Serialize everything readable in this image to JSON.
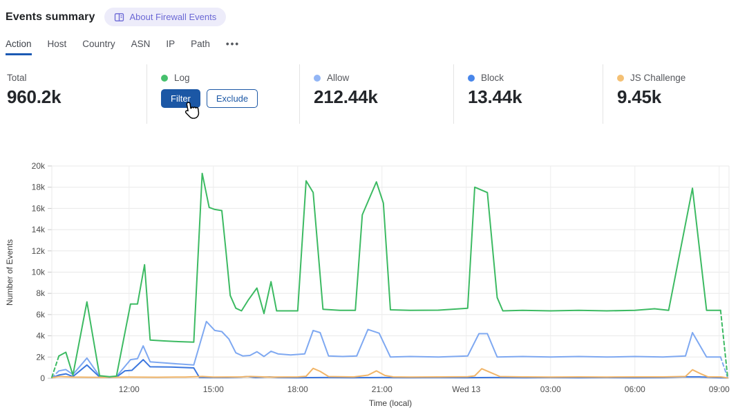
{
  "header": {
    "title": "Events summary",
    "badge": {
      "label": "About Firewall Events"
    }
  },
  "tabs": {
    "items": [
      {
        "label": "Action",
        "active": true
      },
      {
        "label": "Host",
        "active": false
      },
      {
        "label": "Country",
        "active": false
      },
      {
        "label": "ASN",
        "active": false
      },
      {
        "label": "IP",
        "active": false
      },
      {
        "label": "Path",
        "active": false
      },
      {
        "label": "•••",
        "active": false
      }
    ]
  },
  "stats": {
    "cards": [
      {
        "label": "Total",
        "value": "960.2k"
      },
      {
        "label": "Log",
        "dot_color": "#46c06d",
        "filter_label": "Filter",
        "exclude_label": "Exclude"
      },
      {
        "label": "Allow",
        "dot_color": "#92b5f5",
        "value": "212.44k"
      },
      {
        "label": "Block",
        "dot_color": "#4886ea",
        "value": "13.44k"
      },
      {
        "label": "JS Challenge",
        "dot_color": "#f4c074",
        "value": "9.45k"
      }
    ]
  },
  "chart_data": {
    "type": "line",
    "title": "",
    "xlabel": "Time (local)",
    "ylabel": "Number of Events",
    "x_unit": "local time in decimal hours; 24 = midnight Wed 13",
    "xlim": [
      9.25,
      33.35
    ],
    "ylim": [
      0,
      20000
    ],
    "grid": true,
    "legend_position": "stats-row-above",
    "y_ticks": [
      {
        "value": 0,
        "label": "0"
      },
      {
        "value": 2000,
        "label": "2k"
      },
      {
        "value": 4000,
        "label": "4k"
      },
      {
        "value": 6000,
        "label": "6k"
      },
      {
        "value": 8000,
        "label": "8k"
      },
      {
        "value": 10000,
        "label": "10k"
      },
      {
        "value": 12000,
        "label": "12k"
      },
      {
        "value": 14000,
        "label": "14k"
      },
      {
        "value": 16000,
        "label": "16k"
      },
      {
        "value": 18000,
        "label": "18k"
      },
      {
        "value": 20000,
        "label": "20k"
      }
    ],
    "x_ticks": [
      {
        "value": 12,
        "label": "12:00"
      },
      {
        "value": 15,
        "label": "15:00"
      },
      {
        "value": 18,
        "label": "18:00"
      },
      {
        "value": 21,
        "label": "21:00"
      },
      {
        "value": 24,
        "label": "Wed 13"
      },
      {
        "value": 27,
        "label": "03:00"
      },
      {
        "value": 30,
        "label": "06:00"
      },
      {
        "value": 33,
        "label": "09:00"
      }
    ],
    "series": [
      {
        "name": "Allow",
        "color": "#7ea8f1",
        "dash_head": true,
        "dash_tail": true,
        "points": [
          [
            9.25,
            60
          ],
          [
            9.5,
            700
          ],
          [
            9.75,
            820
          ],
          [
            10,
            350
          ],
          [
            10.5,
            1900
          ],
          [
            10.95,
            200
          ],
          [
            11.3,
            120
          ],
          [
            11.55,
            160
          ],
          [
            12.05,
            1750
          ],
          [
            12.3,
            1850
          ],
          [
            12.5,
            3050
          ],
          [
            12.75,
            1550
          ],
          [
            13.25,
            1450
          ],
          [
            13.75,
            1350
          ],
          [
            14.3,
            1250
          ],
          [
            14.75,
            5350
          ],
          [
            15.05,
            4500
          ],
          [
            15.3,
            4400
          ],
          [
            15.55,
            3700
          ],
          [
            15.8,
            2400
          ],
          [
            16.05,
            2100
          ],
          [
            16.3,
            2150
          ],
          [
            16.55,
            2500
          ],
          [
            16.8,
            2050
          ],
          [
            17.05,
            2550
          ],
          [
            17.3,
            2300
          ],
          [
            17.75,
            2200
          ],
          [
            18.25,
            2300
          ],
          [
            18.55,
            4500
          ],
          [
            18.8,
            4300
          ],
          [
            19.1,
            2100
          ],
          [
            19.6,
            2050
          ],
          [
            20.1,
            2100
          ],
          [
            20.5,
            4600
          ],
          [
            20.9,
            4250
          ],
          [
            21.3,
            2000
          ],
          [
            22,
            2050
          ],
          [
            23,
            2000
          ],
          [
            24.05,
            2100
          ],
          [
            24.45,
            4200
          ],
          [
            24.75,
            4200
          ],
          [
            25.1,
            2000
          ],
          [
            26,
            2050
          ],
          [
            27,
            2000
          ],
          [
            28,
            2050
          ],
          [
            29,
            2000
          ],
          [
            30,
            2050
          ],
          [
            31,
            2000
          ],
          [
            31.8,
            2100
          ],
          [
            32.05,
            4300
          ],
          [
            32.55,
            2000
          ],
          [
            33.05,
            2000
          ],
          [
            33.3,
            60
          ]
        ]
      },
      {
        "name": "Block",
        "color": "#3c77de",
        "dash_head": false,
        "dash_tail": false,
        "points": [
          [
            9.25,
            40
          ],
          [
            9.5,
            300
          ],
          [
            9.75,
            420
          ],
          [
            10,
            160
          ],
          [
            10.5,
            1250
          ],
          [
            10.95,
            120
          ],
          [
            11.3,
            80
          ],
          [
            11.55,
            110
          ],
          [
            11.85,
            700
          ],
          [
            12.1,
            750
          ],
          [
            12.5,
            1750
          ],
          [
            12.75,
            1080
          ],
          [
            13.5,
            1060
          ],
          [
            14.3,
            980
          ],
          [
            14.5,
            80
          ],
          [
            15,
            70
          ],
          [
            15.5,
            70
          ],
          [
            16,
            110
          ],
          [
            16.2,
            160
          ],
          [
            16.5,
            70
          ],
          [
            17,
            130
          ],
          [
            17.3,
            70
          ],
          [
            18,
            60
          ],
          [
            19,
            70
          ],
          [
            20,
            60
          ],
          [
            21,
            70
          ],
          [
            22,
            60
          ],
          [
            23,
            70
          ],
          [
            24,
            60
          ],
          [
            25,
            70
          ],
          [
            26,
            60
          ],
          [
            27,
            70
          ],
          [
            28,
            60
          ],
          [
            29,
            70
          ],
          [
            30,
            60
          ],
          [
            31,
            70
          ],
          [
            31.7,
            130
          ],
          [
            32.3,
            130
          ],
          [
            32.8,
            70
          ],
          [
            33.3,
            30
          ]
        ]
      },
      {
        "name": "JS Challenge",
        "color": "#f1b568",
        "dash_head": false,
        "dash_tail": false,
        "points": [
          [
            9.25,
            50
          ],
          [
            9.5,
            160
          ],
          [
            10,
            110
          ],
          [
            11,
            90
          ],
          [
            12,
            110
          ],
          [
            13,
            100
          ],
          [
            14,
            120
          ],
          [
            14.6,
            170
          ],
          [
            15,
            110
          ],
          [
            16,
            130
          ],
          [
            16.3,
            170
          ],
          [
            17,
            110
          ],
          [
            18,
            130
          ],
          [
            18.3,
            190
          ],
          [
            18.55,
            930
          ],
          [
            18.8,
            650
          ],
          [
            19.1,
            160
          ],
          [
            20,
            130
          ],
          [
            20.5,
            290
          ],
          [
            20.8,
            700
          ],
          [
            21.1,
            270
          ],
          [
            21.4,
            130
          ],
          [
            22,
            120
          ],
          [
            23,
            130
          ],
          [
            24.05,
            150
          ],
          [
            24.3,
            230
          ],
          [
            24.55,
            900
          ],
          [
            24.85,
            560
          ],
          [
            25.2,
            160
          ],
          [
            26,
            130
          ],
          [
            27,
            120
          ],
          [
            28,
            130
          ],
          [
            29,
            120
          ],
          [
            30,
            130
          ],
          [
            31,
            130
          ],
          [
            31.8,
            170
          ],
          [
            32.05,
            800
          ],
          [
            32.35,
            420
          ],
          [
            32.6,
            140
          ],
          [
            33.05,
            130
          ],
          [
            33.3,
            40
          ]
        ]
      },
      {
        "name": "Log",
        "color": "#3cba62",
        "dash_head": true,
        "dash_tail": true,
        "points": [
          [
            9.25,
            100
          ],
          [
            9.5,
            2100
          ],
          [
            9.75,
            2450
          ],
          [
            10,
            300
          ],
          [
            10.5,
            7200
          ],
          [
            10.95,
            250
          ],
          [
            11.3,
            150
          ],
          [
            11.55,
            200
          ],
          [
            12.05,
            7000
          ],
          [
            12.3,
            7000
          ],
          [
            12.55,
            10700
          ],
          [
            12.75,
            3600
          ],
          [
            13.25,
            3520
          ],
          [
            13.75,
            3450
          ],
          [
            14.3,
            3400
          ],
          [
            14.6,
            19300
          ],
          [
            14.85,
            16100
          ],
          [
            15.05,
            15900
          ],
          [
            15.3,
            15800
          ],
          [
            15.45,
            11900
          ],
          [
            15.6,
            7800
          ],
          [
            15.8,
            6600
          ],
          [
            16,
            6350
          ],
          [
            16.25,
            7400
          ],
          [
            16.55,
            8500
          ],
          [
            16.8,
            6100
          ],
          [
            17.05,
            9100
          ],
          [
            17.25,
            6350
          ],
          [
            18,
            6350
          ],
          [
            18.3,
            18600
          ],
          [
            18.55,
            17500
          ],
          [
            18.9,
            6500
          ],
          [
            19.5,
            6400
          ],
          [
            20.05,
            6400
          ],
          [
            20.3,
            15400
          ],
          [
            20.8,
            18500
          ],
          [
            21.05,
            16500
          ],
          [
            21.3,
            6450
          ],
          [
            22,
            6400
          ],
          [
            23,
            6420
          ],
          [
            24.05,
            6600
          ],
          [
            24.3,
            18000
          ],
          [
            24.75,
            17500
          ],
          [
            25.1,
            7600
          ],
          [
            25.3,
            6350
          ],
          [
            26,
            6400
          ],
          [
            27,
            6350
          ],
          [
            28,
            6400
          ],
          [
            29,
            6350
          ],
          [
            30,
            6400
          ],
          [
            30.7,
            6550
          ],
          [
            31.2,
            6400
          ],
          [
            32.05,
            17900
          ],
          [
            32.55,
            6400
          ],
          [
            33.05,
            6400
          ],
          [
            33.3,
            100
          ]
        ]
      }
    ],
    "colors": {
      "log": "#3cba62",
      "allow": "#7ea8f1",
      "block": "#3c77de",
      "js_challenge": "#f1b568",
      "accent_blue": "#1b57a5",
      "badge_purple": "#6b68d5"
    }
  }
}
